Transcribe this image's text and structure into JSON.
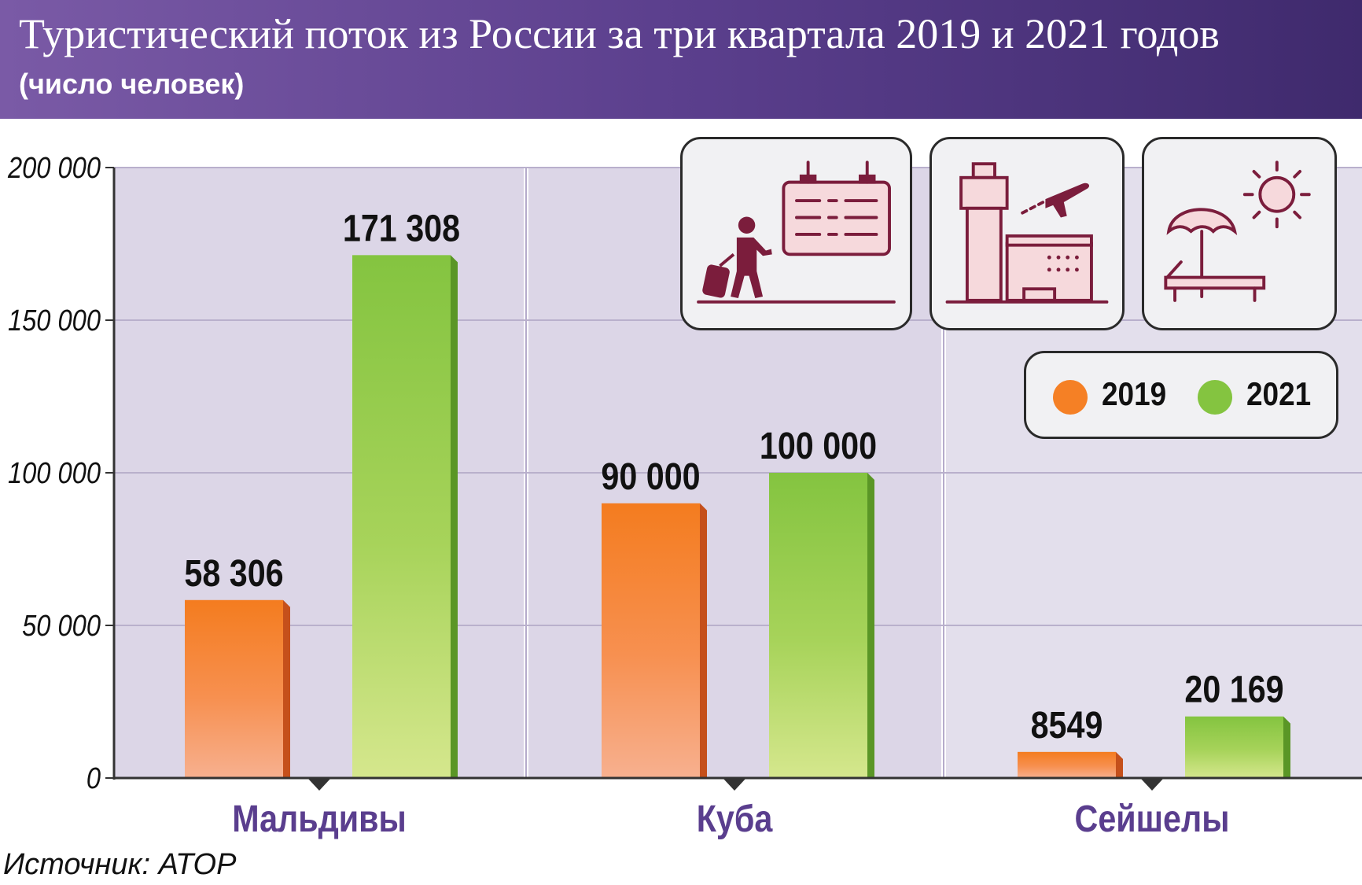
{
  "header": {
    "title": "Туристический поток из России за три квартала 2019 и 2021 годов",
    "subtitle": "(число человек)"
  },
  "colors": {
    "series_2019": "#f58025",
    "series_2021": "#84c440",
    "panel_bg": "#dcd6e7",
    "category_label": "#5a3e8e",
    "icon_stroke": "#7b1d3c"
  },
  "icons": [
    "traveler-departure-board-icon",
    "airport-tower-plane-icon",
    "beach-umbrella-sun-icon"
  ],
  "legend": {
    "items": [
      {
        "label": "2019",
        "color": "#f58025"
      },
      {
        "label": "2021",
        "color": "#84c440"
      }
    ]
  },
  "chart_data": {
    "type": "bar",
    "title": "Туристический поток из России за три квартала 2019 и 2021 годов",
    "subtitle": "(число человек)",
    "categories": [
      "Мальдивы",
      "Куба",
      "Сейшелы"
    ],
    "series": [
      {
        "name": "2019",
        "values": [
          58306,
          90000,
          8549
        ],
        "labels": [
          "58 306",
          "90 000",
          "8549"
        ]
      },
      {
        "name": "2021",
        "values": [
          171308,
          100000,
          20169
        ],
        "labels": [
          "171 308",
          "100 000",
          "20 169"
        ]
      }
    ],
    "ylim": [
      0,
      200000
    ],
    "yticks": [
      0,
      50000,
      100000,
      150000,
      200000
    ],
    "ytick_labels": [
      "0",
      "50 000",
      "100 000",
      "150 000",
      "200 000"
    ],
    "grid": true,
    "legend_position": "top-right"
  },
  "source": "Источник: АТОР"
}
